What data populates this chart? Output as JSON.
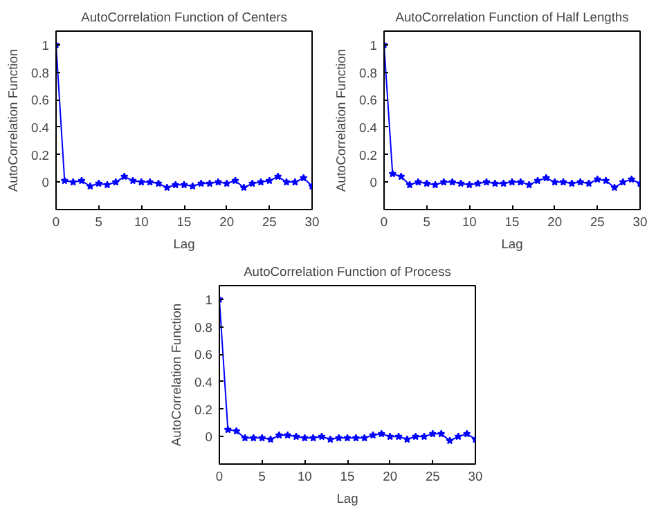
{
  "chart_data": [
    {
      "type": "line",
      "title": "AutoCorrelation Function of Centers",
      "xlabel": "Lag",
      "ylabel": "AutoCorrelation Function",
      "x": [
        0,
        1,
        2,
        3,
        4,
        5,
        6,
        7,
        8,
        9,
        10,
        11,
        12,
        13,
        14,
        15,
        16,
        17,
        18,
        19,
        20,
        21,
        22,
        23,
        24,
        25,
        26,
        27,
        28,
        29,
        30
      ],
      "series": [
        {
          "color": "#0000ff",
          "values": [
            1,
            0.01,
            0.0,
            0.01,
            -0.03,
            -0.01,
            -0.02,
            0.0,
            0.04,
            0.01,
            0.0,
            0.0,
            -0.01,
            -0.04,
            -0.02,
            -0.02,
            -0.03,
            -0.01,
            -0.01,
            0.0,
            -0.01,
            0.01,
            -0.04,
            -0.01,
            0.0,
            0.01,
            0.04,
            0.0,
            0.0,
            0.03,
            -0.03
          ]
        }
      ],
      "xlim": [
        0,
        30
      ],
      "ylim": [
        -0.2,
        1.1
      ],
      "xticks": [
        0,
        5,
        10,
        15,
        20,
        25,
        30
      ],
      "yticks": [
        0,
        0.2,
        0.4,
        0.6,
        0.8,
        1
      ],
      "marker": "star",
      "line_style": "solid",
      "grid": false
    },
    {
      "type": "line",
      "title": "AutoCorrelation Function of Half Lengths",
      "xlabel": "Lag",
      "ylabel": "AutoCorrelation Function",
      "x": [
        0,
        1,
        2,
        3,
        4,
        5,
        6,
        7,
        8,
        9,
        10,
        11,
        12,
        13,
        14,
        15,
        16,
        17,
        18,
        19,
        20,
        21,
        22,
        23,
        24,
        25,
        26,
        27,
        28,
        29,
        30
      ],
      "series": [
        {
          "color": "#0000ff",
          "values": [
            1,
            0.06,
            0.04,
            -0.02,
            0.0,
            -0.01,
            -0.02,
            0.0,
            0.0,
            -0.01,
            -0.02,
            -0.01,
            0.0,
            -0.01,
            -0.01,
            0.0,
            0.0,
            -0.02,
            0.01,
            0.03,
            0.0,
            0.0,
            -0.01,
            0.0,
            -0.01,
            0.02,
            0.01,
            -0.04,
            0.0,
            0.02,
            -0.01
          ]
        }
      ],
      "xlim": [
        0,
        30
      ],
      "ylim": [
        -0.2,
        1.1
      ],
      "xticks": [
        0,
        5,
        10,
        15,
        20,
        25,
        30
      ],
      "yticks": [
        0,
        0.2,
        0.4,
        0.6,
        0.8,
        1
      ],
      "marker": "star",
      "line_style": "solid",
      "grid": false
    },
    {
      "type": "line",
      "title": "AutoCorrelation Function of Process",
      "xlabel": "Lag",
      "ylabel": "AutoCorrelation Function",
      "x": [
        0,
        1,
        2,
        3,
        4,
        5,
        6,
        7,
        8,
        9,
        10,
        11,
        12,
        13,
        14,
        15,
        16,
        17,
        18,
        19,
        20,
        21,
        22,
        23,
        24,
        25,
        26,
        27,
        28,
        29,
        30
      ],
      "series": [
        {
          "color": "#0000ff",
          "values": [
            1,
            0.05,
            0.04,
            -0.01,
            -0.01,
            -0.01,
            -0.02,
            0.01,
            0.01,
            0.0,
            -0.01,
            -0.01,
            0.0,
            -0.02,
            -0.01,
            -0.01,
            -0.01,
            -0.01,
            0.01,
            0.02,
            0.0,
            0.0,
            -0.02,
            0.0,
            0.0,
            0.02,
            0.02,
            -0.03,
            0.0,
            0.02,
            -0.02
          ]
        }
      ],
      "xlim": [
        0,
        30
      ],
      "ylim": [
        -0.2,
        1.1
      ],
      "xticks": [
        0,
        5,
        10,
        15,
        20,
        25,
        30
      ],
      "yticks": [
        0,
        0.2,
        0.4,
        0.6,
        0.8,
        1
      ],
      "marker": "star",
      "line_style": "solid",
      "grid": false
    }
  ]
}
